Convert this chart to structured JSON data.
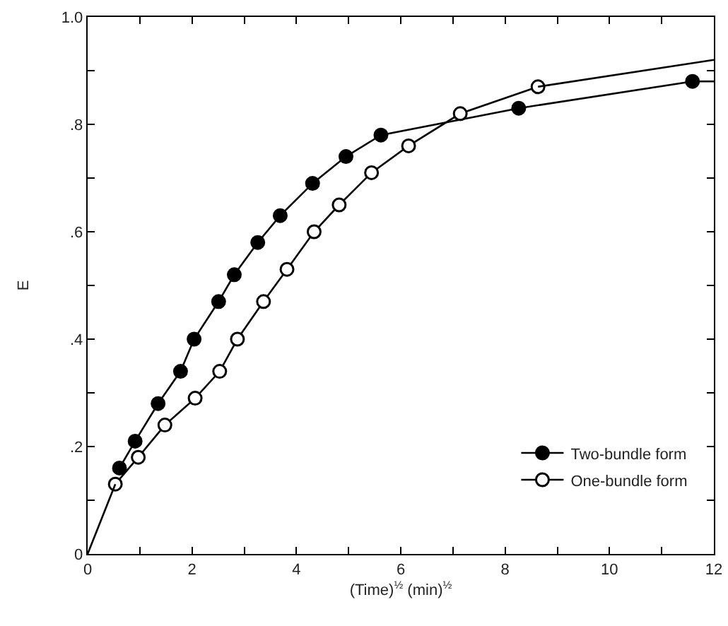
{
  "chart_data": {
    "type": "line",
    "xlabel": "(Time)$^{½}$ (min)$^{½}$",
    "ylabel": "E",
    "marker": "circle",
    "legend": "bottom right",
    "grid": false,
    "xlim": [
      0,
      12
    ],
    "xticks": [
      0,
      {
        "value": 1,
        "label": null
      },
      2,
      {
        "value": 3,
        "label": null
      },
      4,
      {
        "value": 5,
        "label": null
      },
      6,
      {
        "value": 7,
        "label": null
      },
      8,
      {
        "value": 9,
        "label": null
      },
      10,
      {
        "value": 11,
        "label": null
      },
      12
    ],
    "ylim": [
      0,
      1
    ],
    "yticks": [
      0,
      {
        "value": 0.1,
        "label": null
      },
      {
        "value": 0.2,
        "label": ".2"
      },
      {
        "value": 0.3,
        "label": null
      },
      {
        "value": 0.4,
        "label": ".4"
      },
      {
        "value": 0.5,
        "label": null
      },
      {
        "value": 0.6,
        "label": ".6"
      },
      {
        "value": 0.7,
        "label": null
      },
      {
        "value": 0.8,
        "label": ".8"
      },
      {
        "value": 0.9,
        "label": null
      },
      {
        "value": 1,
        "label": "1.0"
      }
    ],
    "series": [
      {
        "name": "Two-bundle form",
        "color": "#000000",
        "x": [
          0.61,
          0.91,
          1.35,
          1.78,
          2.04,
          2.51,
          2.81,
          3.26,
          3.69,
          4.31,
          4.95,
          5.62,
          8.26,
          11.59
        ],
        "values": [
          0.16,
          0.21,
          0.28,
          0.34,
          0.4,
          0.47,
          0.52,
          0.58,
          0.63,
          0.69,
          0.74,
          0.78,
          0.83,
          0.88
        ]
      },
      {
        "name": "One-bundle form",
        "color": "#ffffff",
        "x": [
          0.53,
          0.97,
          1.48,
          2.06,
          2.53,
          2.87,
          3.37,
          3.82,
          4.34,
          4.82,
          5.44,
          6.15,
          7.14,
          8.63
        ],
        "values": [
          0.13,
          0.18,
          0.24,
          0.29,
          0.34,
          0.4,
          0.47,
          0.53,
          0.6,
          0.65,
          0.71,
          0.76,
          0.82,
          0.87
        ]
      },
      {
        "type": "line",
        "marker": "none",
        "color": "#000000",
        "x": [
          0,
          0.53
        ],
        "values": [
          0,
          0.13
        ]
      },
      {
        "type": "line",
        "marker": "none",
        "color": "#000000",
        "x": [
          8.63,
          12
        ],
        "values": [
          0.87,
          0.92
        ]
      },
      {
        "type": "line",
        "marker": "none",
        "color": "#000000",
        "x": [
          11.59,
          12
        ],
        "values": [
          0.88,
          0.88
        ]
      }
    ]
  }
}
